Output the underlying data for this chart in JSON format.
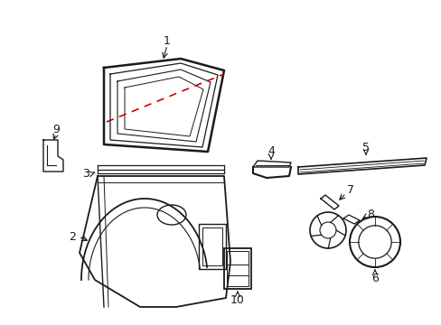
{
  "background_color": "#ffffff",
  "fig_width": 4.89,
  "fig_height": 3.6,
  "dpi": 100,
  "line_color": "#1a1a1a",
  "red_dash_color": "#cc0000",
  "label_fontsize": 9
}
